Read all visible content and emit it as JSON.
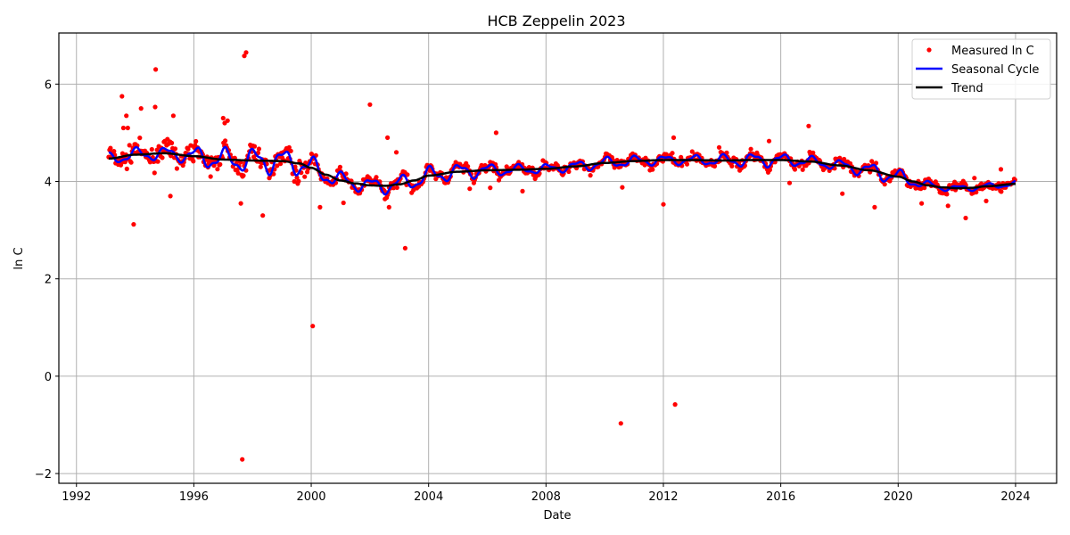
{
  "chart_data": {
    "type": "scatter",
    "title": "HCB Zeppelin 2023",
    "xlabel": "Date",
    "ylabel": "ln C",
    "xlim": [
      1991.4,
      2025.4
    ],
    "ylim": [
      -2.2,
      7.05
    ],
    "xticks": [
      1992,
      1996,
      2000,
      2004,
      2008,
      2012,
      2016,
      2020,
      2024
    ],
    "xtick_labels": [
      "1992",
      "1996",
      "2000",
      "2004",
      "2008",
      "2012",
      "2016",
      "2020",
      "2024"
    ],
    "yticks": [
      -2,
      0,
      2,
      4,
      6
    ],
    "ytick_labels": [
      "−2",
      "0",
      "2",
      "4",
      "6"
    ],
    "grid": true,
    "legend_position": "top-right",
    "colors": {
      "measured": "#ff0000",
      "seasonal": "#0000ff",
      "trend": "#000000",
      "grid": "#b0b0b0"
    },
    "series": [
      {
        "name": "Measured ln C",
        "kind": "points"
      },
      {
        "name": "Seasonal Cycle",
        "kind": "line"
      },
      {
        "name": "Trend",
        "kind": "line"
      }
    ],
    "trend": {
      "x": [
        1993.1,
        1994,
        1995,
        1996,
        1997,
        1998,
        1999,
        1999.6,
        2000,
        2000.5,
        2001,
        2001.5,
        2002,
        2002.5,
        2003,
        2003.5,
        2004,
        2005,
        2006,
        2007,
        2008,
        2009,
        2010,
        2011,
        2012,
        2013,
        2014,
        2015,
        2016,
        2017,
        2018,
        2019,
        2020,
        2020.5,
        2021,
        2021.5,
        2022,
        2022.5,
        2023,
        2024
      ],
      "y": [
        4.47,
        4.55,
        4.58,
        4.52,
        4.45,
        4.43,
        4.42,
        4.37,
        4.28,
        4.14,
        4.02,
        3.96,
        3.92,
        3.91,
        3.94,
        4.02,
        4.12,
        4.2,
        4.23,
        4.24,
        4.26,
        4.31,
        4.38,
        4.42,
        4.44,
        4.44,
        4.43,
        4.44,
        4.44,
        4.41,
        4.33,
        4.23,
        4.1,
        4.0,
        3.92,
        3.88,
        3.86,
        3.87,
        3.9,
        3.95
      ]
    },
    "seasonal": {
      "amplitude": [
        0.1,
        0.12,
        0.1,
        0.18,
        0.2,
        0.22,
        0.2,
        0.15,
        0.12,
        0.15,
        0.15,
        0.13,
        0.1,
        0.08,
        0.08,
        0.1,
        0.09,
        0.08,
        0.08,
        0.1,
        0.12,
        0.1,
        0.08,
        0.1,
        0.14,
        0.08,
        0.05,
        0.05,
        0.05
      ]
    },
    "outliers": [
      [
        1997.65,
        -1.71
      ],
      [
        1997.72,
        6.58
      ],
      [
        1997.78,
        6.65
      ],
      [
        1994.7,
        6.3
      ],
      [
        1993.55,
        5.75
      ],
      [
        1994.2,
        5.5
      ],
      [
        1994.68,
        5.53
      ],
      [
        1995.3,
        5.35
      ],
      [
        1997.0,
        5.3
      ],
      [
        1997.05,
        5.2
      ],
      [
        1997.15,
        5.25
      ],
      [
        1993.7,
        5.35
      ],
      [
        1993.6,
        5.1
      ],
      [
        1993.75,
        5.1
      ],
      [
        1993.95,
        3.12
      ],
      [
        1995.2,
        3.7
      ],
      [
        1997.6,
        3.55
      ],
      [
        1998.35,
        3.3
      ],
      [
        2000.05,
        1.03
      ],
      [
        2000.3,
        3.47
      ],
      [
        2001.1,
        3.56
      ],
      [
        2002.0,
        5.58
      ],
      [
        2002.6,
        4.9
      ],
      [
        2002.9,
        4.6
      ],
      [
        2002.65,
        3.47
      ],
      [
        2003.2,
        2.63
      ],
      [
        2005.4,
        3.85
      ],
      [
        2006.3,
        5.0
      ],
      [
        2006.1,
        3.87
      ],
      [
        2007.2,
        3.8
      ],
      [
        2010.55,
        -0.97
      ],
      [
        2010.6,
        3.88
      ],
      [
        2012.4,
        -0.58
      ],
      [
        2012.0,
        3.53
      ],
      [
        2012.35,
        4.9
      ],
      [
        2013.9,
        4.7
      ],
      [
        2015.6,
        4.83
      ],
      [
        2016.3,
        3.97
      ],
      [
        2016.95,
        5.14
      ],
      [
        2018.1,
        3.75
      ],
      [
        2019.2,
        3.47
      ],
      [
        2020.8,
        3.55
      ],
      [
        2021.7,
        3.5
      ],
      [
        2022.3,
        3.25
      ],
      [
        2022.6,
        4.07
      ],
      [
        2023.0,
        3.6
      ],
      [
        2023.5,
        4.25
      ]
    ]
  }
}
